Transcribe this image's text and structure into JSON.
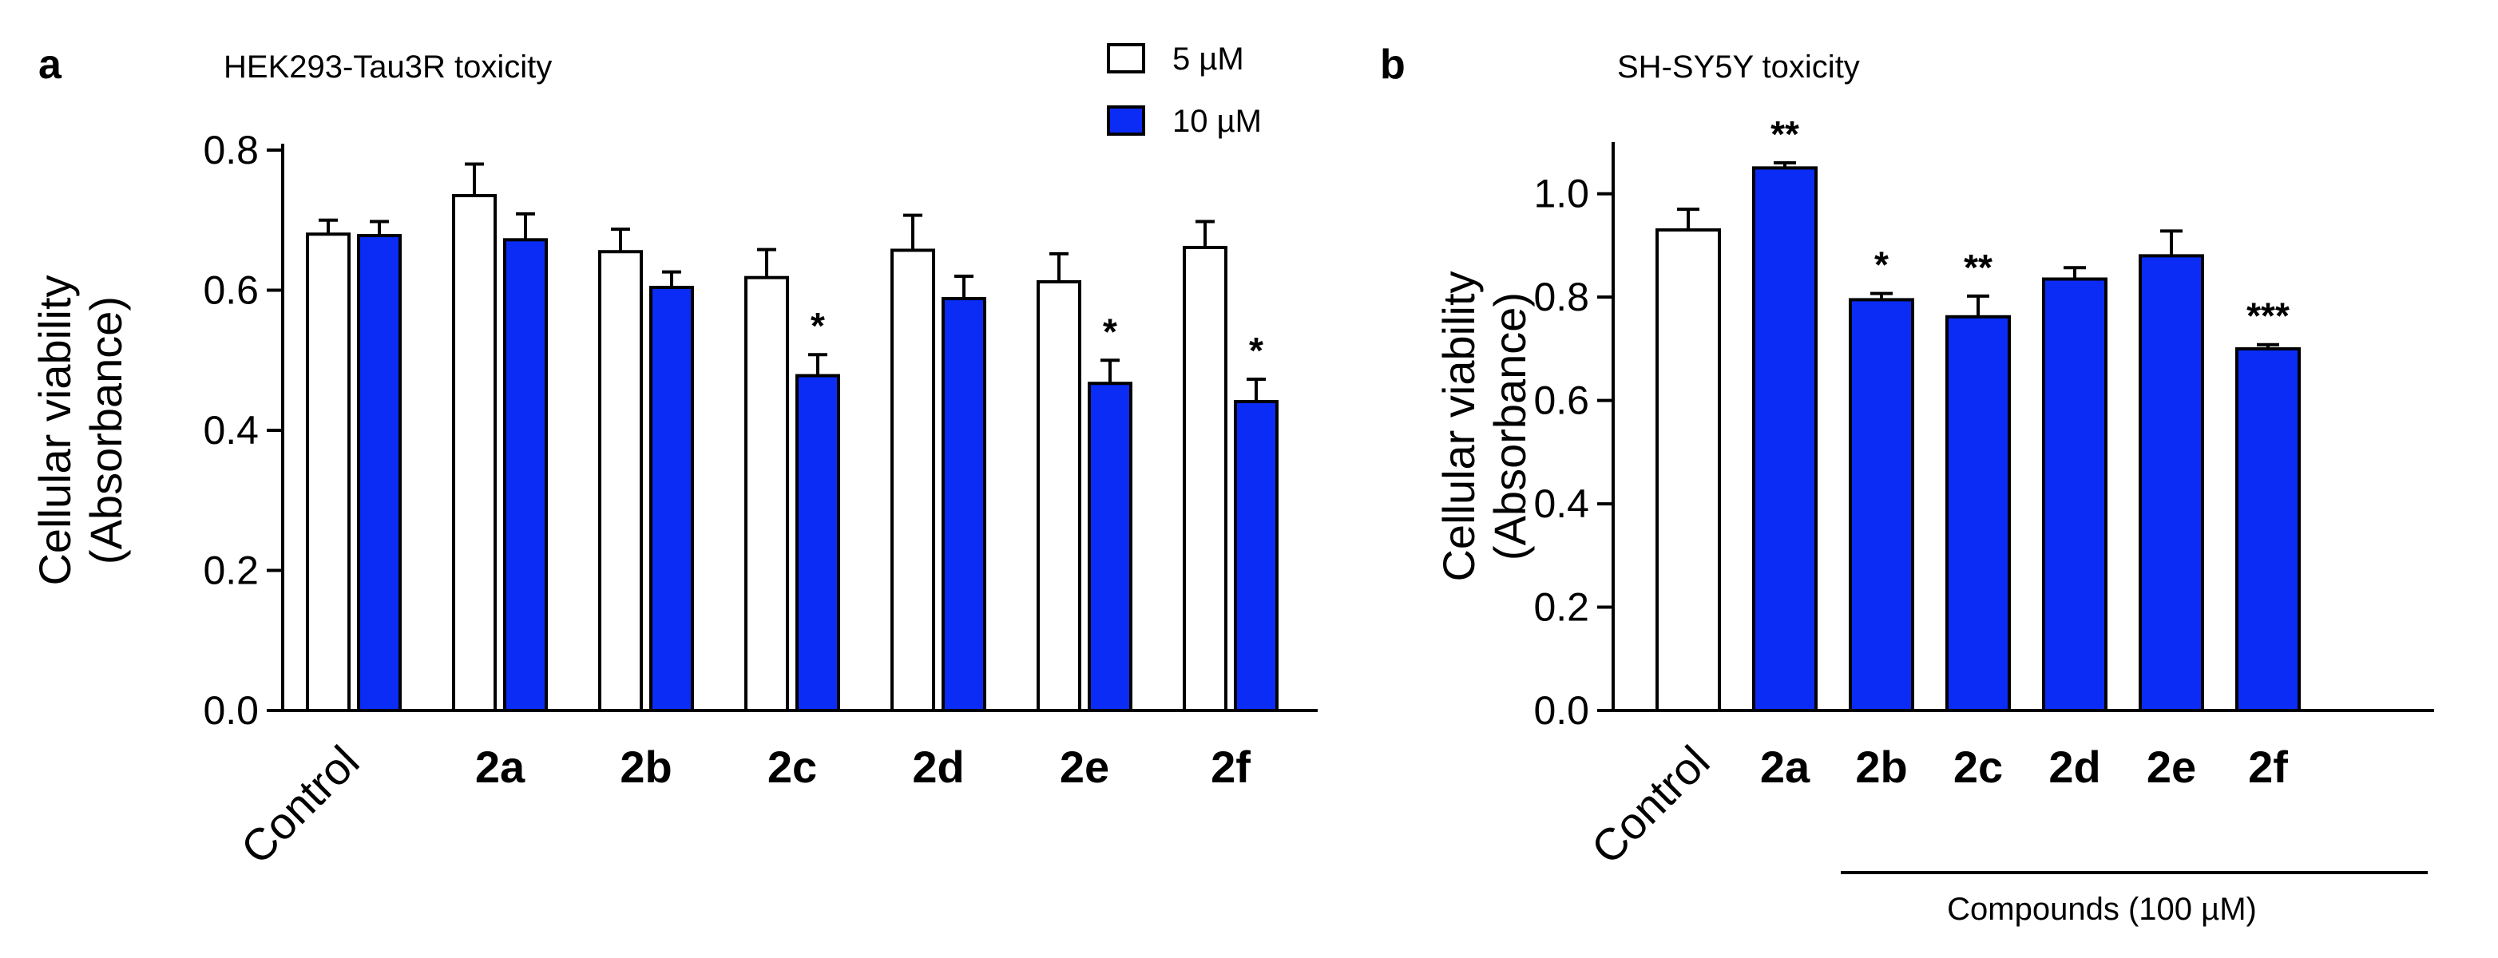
{
  "chart_data": [
    {
      "panel": "a",
      "type": "bar",
      "title": "HEK293-Tau3R toxicity",
      "ylabel_line1": "Cellular viability",
      "ylabel_line2": "(Absorbance)",
      "xlabel": "",
      "ylim": [
        0,
        0.8
      ],
      "yticks": [
        0.0,
        0.2,
        0.4,
        0.6,
        0.8
      ],
      "ytick_labels": [
        "0.0",
        "0.2",
        "0.4",
        "0.6",
        "0.8"
      ],
      "categories": [
        "Control",
        "2a",
        "2b",
        "2c",
        "2d",
        "2e",
        "2f"
      ],
      "legend_position": "top-right",
      "series": [
        {
          "name": "5 µM",
          "color": "#ffffff",
          "values": [
            0.68,
            0.735,
            0.655,
            0.618,
            0.657,
            0.612,
            0.661
          ],
          "errors": [
            0.02,
            0.045,
            0.032,
            0.04,
            0.05,
            0.04,
            0.037
          ],
          "significance": [
            "",
            "",
            "",
            "",
            "",
            "",
            ""
          ]
        },
        {
          "name": "10 µM",
          "color": "#0a2cf5",
          "values": [
            0.678,
            0.672,
            0.604,
            0.478,
            0.588,
            0.467,
            0.441
          ],
          "errors": [
            0.02,
            0.037,
            0.022,
            0.03,
            0.032,
            0.033,
            0.032
          ],
          "significance": [
            "",
            "",
            "",
            "*",
            "",
            "*",
            "*"
          ]
        }
      ]
    },
    {
      "panel": "b",
      "type": "bar",
      "title": "SH-SY5Y toxicity",
      "ylabel_line1": "Cellular viability",
      "ylabel_line2": "(Absorbance)",
      "xlabel": "Compounds (100 µM)",
      "ylim": [
        0,
        1.1
      ],
      "yticks": [
        0.0,
        0.2,
        0.4,
        0.6,
        0.8,
        1.0
      ],
      "ytick_labels": [
        "0.0",
        "0.2",
        "0.4",
        "0.6",
        "0.8",
        "1.0"
      ],
      "categories": [
        "Control",
        "2a",
        "2b",
        "2c",
        "2d",
        "2e",
        "2f"
      ],
      "values": [
        0.93,
        1.05,
        0.795,
        0.762,
        0.835,
        0.88,
        0.7
      ],
      "errors": [
        0.04,
        0.01,
        0.012,
        0.04,
        0.022,
        0.048,
        0.008
      ],
      "colors": [
        "#ffffff",
        "#0a2cf5",
        "#0a2cf5",
        "#0a2cf5",
        "#0a2cf5",
        "#0a2cf5",
        "#0a2cf5"
      ],
      "significance": [
        "",
        "**",
        "*",
        "**",
        "",
        "",
        "***"
      ]
    }
  ]
}
